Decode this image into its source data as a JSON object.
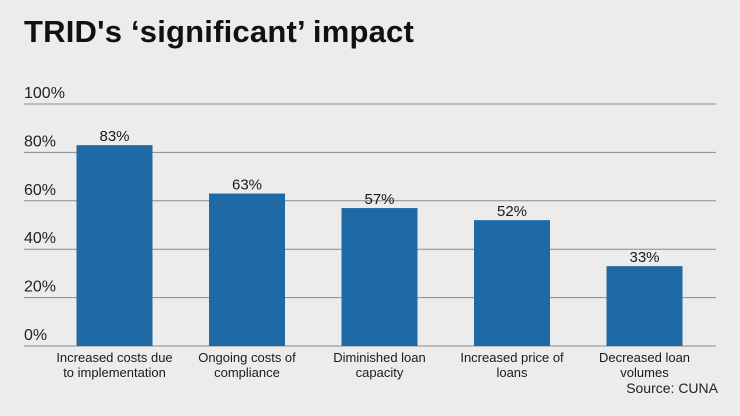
{
  "chart_data": {
    "type": "bar",
    "title": "TRID's ‘significant’ impact",
    "categories": [
      [
        "Increased costs due",
        "to implementation"
      ],
      [
        "Ongoing costs of",
        "compliance"
      ],
      [
        "Diminished loan",
        "capacity"
      ],
      [
        "Increased price of",
        "loans"
      ],
      [
        "Decreased loan",
        "volumes"
      ]
    ],
    "values": [
      83,
      63,
      57,
      52,
      33
    ],
    "value_labels": [
      "83%",
      "63%",
      "57%",
      "52%",
      "33%"
    ],
    "yticks": [
      "0%",
      "20%",
      "40%",
      "60%",
      "80%",
      "100%"
    ],
    "ylim": [
      0,
      100
    ],
    "grid": true,
    "bar_color": "#1f6aa5",
    "grid_color": "#8a8a8a",
    "source": "Source: CUNA"
  }
}
